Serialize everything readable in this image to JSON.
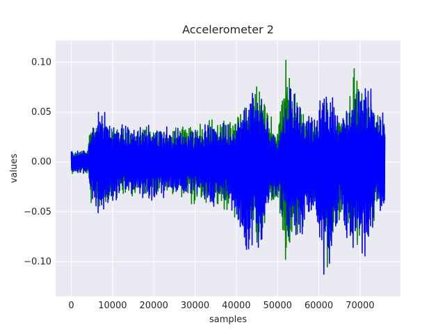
{
  "chart_data": {
    "type": "line",
    "title": "Accelerometer 2",
    "xlabel": "samples",
    "ylabel": "values",
    "xlim": [
      -3800,
      79800
    ],
    "ylim": [
      -0.135,
      0.122
    ],
    "xticks": [
      0,
      10000,
      20000,
      30000,
      40000,
      50000,
      60000,
      70000
    ],
    "xtick_labels": [
      "0",
      "10000",
      "20000",
      "30000",
      "40000",
      "50000",
      "60000",
      "70000"
    ],
    "yticks": [
      -0.1,
      -0.05,
      0.0,
      0.05,
      0.1
    ],
    "ytick_labels": [
      "−0.10",
      "−0.05",
      "0.00",
      "0.05",
      "0.10"
    ],
    "grid": true,
    "background": "#eaeaf2",
    "series_envelope_note": "approximate amplitude envelopes (data units) sampled along x",
    "series": [
      {
        "color": "#008000",
        "envelope": [
          {
            "x": 0,
            "max": 0.01,
            "min": -0.012
          },
          {
            "x": 4000,
            "max": 0.013,
            "min": -0.013
          },
          {
            "x": 4500,
            "max": 0.046,
            "min": -0.045
          },
          {
            "x": 8000,
            "max": 0.044,
            "min": -0.046
          },
          {
            "x": 12000,
            "max": 0.04,
            "min": -0.036
          },
          {
            "x": 18000,
            "max": 0.036,
            "min": -0.034
          },
          {
            "x": 22000,
            "max": 0.034,
            "min": -0.032
          },
          {
            "x": 28000,
            "max": 0.038,
            "min": -0.038
          },
          {
            "x": 30000,
            "max": 0.04,
            "min": -0.048
          },
          {
            "x": 33000,
            "max": 0.046,
            "min": -0.048
          },
          {
            "x": 36000,
            "max": 0.043,
            "min": -0.046
          },
          {
            "x": 40000,
            "max": 0.046,
            "min": -0.066
          },
          {
            "x": 43000,
            "max": 0.07,
            "min": -0.07
          },
          {
            "x": 45000,
            "max": 0.09,
            "min": -0.1
          },
          {
            "x": 47000,
            "max": 0.065,
            "min": -0.06
          },
          {
            "x": 50000,
            "max": 0.03,
            "min": -0.04
          },
          {
            "x": 52000,
            "max": 0.11,
            "min": -0.108
          },
          {
            "x": 55000,
            "max": 0.06,
            "min": -0.084
          },
          {
            "x": 58000,
            "max": 0.04,
            "min": -0.046
          },
          {
            "x": 60000,
            "max": 0.06,
            "min": -0.06
          },
          {
            "x": 62000,
            "max": 0.08,
            "min": -0.112
          },
          {
            "x": 64000,
            "max": 0.044,
            "min": -0.07
          },
          {
            "x": 67000,
            "max": 0.066,
            "min": -0.074
          },
          {
            "x": 69000,
            "max": 0.108,
            "min": -0.096
          },
          {
            "x": 71000,
            "max": 0.074,
            "min": -0.08
          },
          {
            "x": 74000,
            "max": 0.06,
            "min": -0.06
          },
          {
            "x": 76000,
            "max": 0.04,
            "min": -0.04
          }
        ]
      },
      {
        "color": "#0000ff",
        "envelope": [
          {
            "x": 0,
            "max": 0.011,
            "min": -0.011
          },
          {
            "x": 4000,
            "max": 0.012,
            "min": -0.012
          },
          {
            "x": 5000,
            "max": 0.038,
            "min": -0.046
          },
          {
            "x": 7000,
            "max": 0.06,
            "min": -0.058
          },
          {
            "x": 10000,
            "max": 0.04,
            "min": -0.042
          },
          {
            "x": 15000,
            "max": 0.038,
            "min": -0.034
          },
          {
            "x": 20000,
            "max": 0.04,
            "min": -0.04
          },
          {
            "x": 25000,
            "max": 0.036,
            "min": -0.034
          },
          {
            "x": 30000,
            "max": 0.036,
            "min": -0.038
          },
          {
            "x": 35000,
            "max": 0.04,
            "min": -0.046
          },
          {
            "x": 38000,
            "max": 0.042,
            "min": -0.04
          },
          {
            "x": 40000,
            "max": 0.046,
            "min": -0.06
          },
          {
            "x": 42000,
            "max": 0.06,
            "min": -0.104
          },
          {
            "x": 44000,
            "max": 0.085,
            "min": -0.085
          },
          {
            "x": 46000,
            "max": 0.07,
            "min": -0.088
          },
          {
            "x": 48000,
            "max": 0.04,
            "min": -0.05
          },
          {
            "x": 50000,
            "max": 0.028,
            "min": -0.034
          },
          {
            "x": 53000,
            "max": 0.09,
            "min": -0.09
          },
          {
            "x": 56000,
            "max": 0.06,
            "min": -0.078
          },
          {
            "x": 59000,
            "max": 0.042,
            "min": -0.052
          },
          {
            "x": 61000,
            "max": 0.076,
            "min": -0.124
          },
          {
            "x": 63000,
            "max": 0.08,
            "min": -0.11
          },
          {
            "x": 65000,
            "max": 0.046,
            "min": -0.06
          },
          {
            "x": 68000,
            "max": 0.068,
            "min": -0.09
          },
          {
            "x": 70000,
            "max": 0.08,
            "min": -0.094
          },
          {
            "x": 72000,
            "max": 0.09,
            "min": -0.11
          },
          {
            "x": 74000,
            "max": 0.058,
            "min": -0.058
          },
          {
            "x": 76000,
            "max": 0.05,
            "min": -0.056
          }
        ]
      }
    ]
  }
}
